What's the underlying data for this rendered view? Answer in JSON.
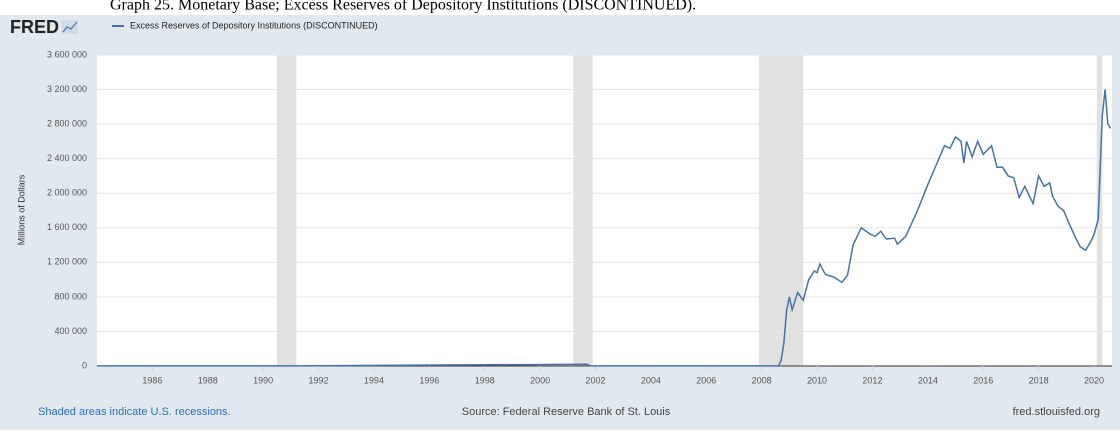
{
  "caption": "Graph 25. Monetary Base; Excess Reserves of Depository Institutions (DISCONTINUED).",
  "logo": "FRED",
  "note": "Shaded areas indicate U.S. recessions.",
  "source": "Source: Federal Reserve Bank of St. Louis",
  "url": "fred.stlouisfed.org",
  "chart_data": {
    "type": "line",
    "y_label": "Millions of Dollars",
    "xlim": [
      1984,
      2020.65
    ],
    "xticks": [
      1986,
      1988,
      1990,
      1992,
      1994,
      1996,
      1998,
      2000,
      2002,
      2004,
      2006,
      2008,
      2010,
      2012,
      2014,
      2016,
      2018,
      2020
    ],
    "ylim": [
      0,
      3600000
    ],
    "yticks": [
      {
        "value": 0,
        "label": "0"
      },
      {
        "value": 400000,
        "label": "400 000"
      },
      {
        "value": 800000,
        "label": "800 000"
      },
      {
        "value": 1200000,
        "label": "1 200 000"
      },
      {
        "value": 1600000,
        "label": "1 600 000"
      },
      {
        "value": 2000000,
        "label": "2 000 000"
      },
      {
        "value": 2400000,
        "label": "2 400 000"
      },
      {
        "value": 2800000,
        "label": "2 800 000"
      },
      {
        "value": 3200000,
        "label": "3 200 000"
      },
      {
        "value": 3600000,
        "label": "3 600 000"
      }
    ],
    "grid": true,
    "recessions": [
      [
        1990.5,
        1991.2
      ],
      [
        2001.2,
        2001.9
      ],
      [
        2007.9,
        2009.5
      ],
      [
        2020.1,
        2020.3
      ]
    ],
    "recession_color": "#e1e1e1",
    "series": [
      {
        "name": "Excess Reserves of Depository Institutions (DISCONTINUED)",
        "color": "#4572a7",
        "x": [
          1984,
          1990,
          1991,
          2001.7,
          2001.8,
          2007,
          2008.6,
          2008.7,
          2008.8,
          2008.9,
          2009.0,
          2009.1,
          2009.3,
          2009.5,
          2009.7,
          2009.9,
          2010.0,
          2010.1,
          2010.3,
          2010.6,
          2010.9,
          2011.1,
          2011.3,
          2011.6,
          2011.9,
          2012.1,
          2012.3,
          2012.5,
          2012.8,
          2012.9,
          2013.2,
          2013.6,
          2014.0,
          2014.2,
          2014.4,
          2014.6,
          2014.8,
          2015.0,
          2015.2,
          2015.3,
          2015.4,
          2015.6,
          2015.8,
          2016.0,
          2016.3,
          2016.5,
          2016.7,
          2016.9,
          2017.1,
          2017.3,
          2017.5,
          2017.8,
          2018.0,
          2018.2,
          2018.4,
          2018.5,
          2018.7,
          2018.9,
          2019.1,
          2019.3,
          2019.5,
          2019.7,
          2019.9,
          2020.0,
          2020.15,
          2020.3,
          2020.4,
          2020.5,
          2020.6
        ],
        "values": [
          1000,
          1000,
          2000,
          20000,
          2000,
          2000,
          2000,
          60000,
          260000,
          640000,
          800000,
          650000,
          850000,
          760000,
          1000000,
          1100000,
          1080000,
          1180000,
          1060000,
          1030000,
          970000,
          1050000,
          1400000,
          1600000,
          1530000,
          1500000,
          1560000,
          1470000,
          1480000,
          1410000,
          1500000,
          1780000,
          2100000,
          2250000,
          2400000,
          2550000,
          2520000,
          2650000,
          2600000,
          2350000,
          2600000,
          2420000,
          2600000,
          2450000,
          2550000,
          2300000,
          2300000,
          2200000,
          2180000,
          1950000,
          2080000,
          1880000,
          2200000,
          2080000,
          2120000,
          1970000,
          1850000,
          1800000,
          1650000,
          1510000,
          1380000,
          1340000,
          1450000,
          1520000,
          1700000,
          2900000,
          3200000,
          2800000,
          2750000
        ]
      }
    ]
  }
}
